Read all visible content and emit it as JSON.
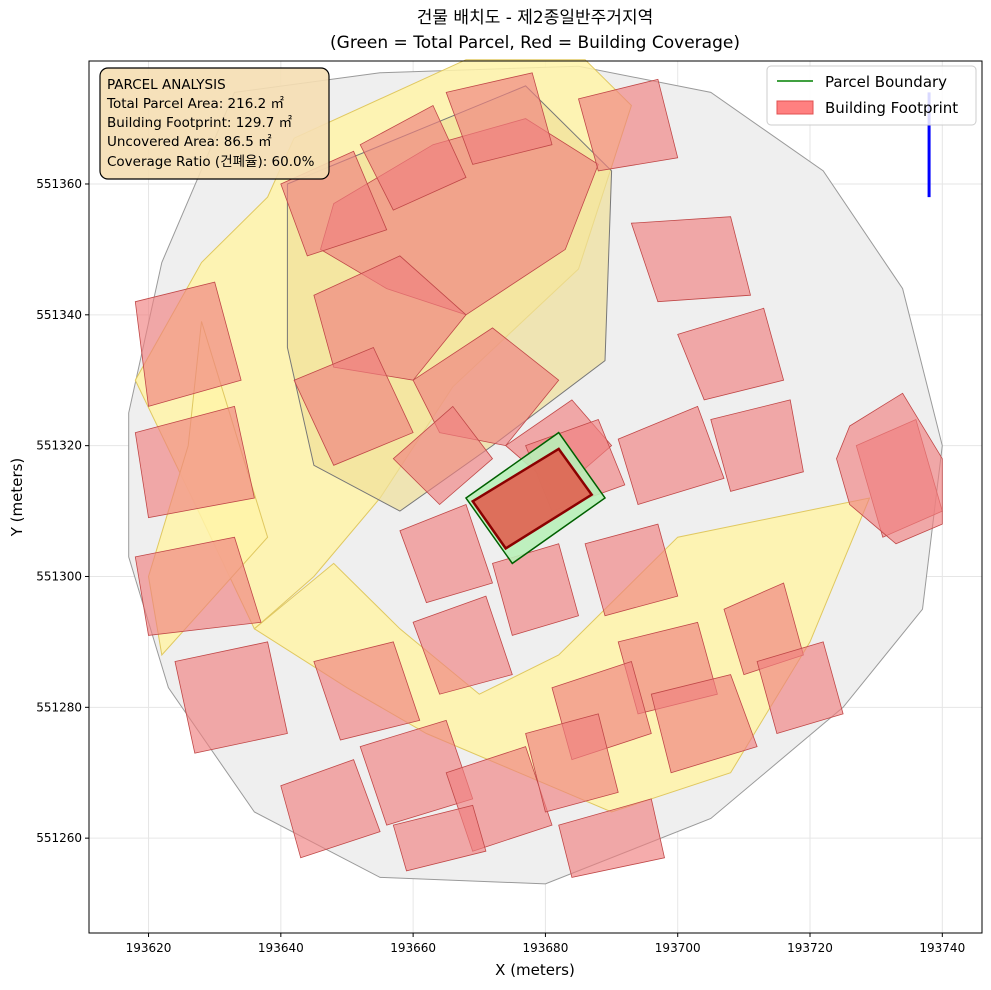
{
  "chart_data": {
    "type": "map",
    "title": "건물 배치도 - 제2종일반주거지역",
    "subtitle": "(Green = Total Parcel, Red = Building Coverage)",
    "xlabel": "X (meters)",
    "ylabel": "Y (meters)",
    "xlim": [
      193611,
      193746
    ],
    "ylim": [
      551245.5,
      551378.8
    ],
    "grid": true,
    "xticks": [
      193620,
      193640,
      193660,
      193680,
      193700,
      193720,
      193740
    ],
    "yticks": [
      551260,
      551280,
      551300,
      551320,
      551340,
      551360
    ],
    "legend": {
      "placement": "top-right",
      "entries": [
        {
          "label": "Parcel Boundary",
          "color": "#008000",
          "kind": "line"
        },
        {
          "label": "Building Footprint",
          "color": "#ff8080",
          "kind": "patch"
        }
      ]
    },
    "info_box": {
      "lines": [
        "PARCEL ANALYSIS",
        "Total Parcel Area: 216.2 ㎡",
        "Building Footprint: 129.7 ㎡",
        "Uncovered Area: 86.5 ㎡",
        "Coverage Ratio (건폐율): 60.0%"
      ]
    },
    "analysis": {
      "total_parcel_area_m2": 216.2,
      "building_footprint_m2": 129.7,
      "uncovered_area_m2": 86.5,
      "coverage_ratio_pct": 60.0
    },
    "target_parcel": [
      [
        193668,
        551312
      ],
      [
        193682,
        551322
      ],
      [
        193689,
        551312
      ],
      [
        193675,
        551302
      ]
    ],
    "target_building": [
      [
        193669,
        551311.5
      ],
      [
        193682,
        551319.5
      ],
      [
        193687,
        551312.5
      ],
      [
        193674,
        551304.3
      ]
    ],
    "context_boundary": [
      [
        193633,
        551374
      ],
      [
        193655,
        551377
      ],
      [
        193685,
        551378
      ],
      [
        193705,
        551374
      ],
      [
        193722,
        551362
      ],
      [
        193734,
        551344
      ],
      [
        193740,
        551320
      ],
      [
        193737,
        551295
      ],
      [
        193725,
        551280
      ],
      [
        193705,
        551263
      ],
      [
        193680,
        551253
      ],
      [
        193655,
        551254
      ],
      [
        193636,
        551264
      ],
      [
        193623,
        551283
      ],
      [
        193617,
        551303
      ],
      [
        193617,
        551325
      ],
      [
        193622,
        551348
      ]
    ],
    "roads": [
      [
        [
          193642,
          551367
        ],
        [
          193668,
          551379
        ],
        [
          193686,
          551379
        ],
        [
          193693,
          551372
        ],
        [
          193685,
          551347
        ],
        [
          193666,
          551329
        ],
        [
          193655,
          551312
        ],
        [
          193645,
          551300
        ],
        [
          193636,
          551292
        ],
        [
          193628,
          551309
        ],
        [
          193618,
          551330
        ],
        [
          193628,
          551348
        ],
        [
          193638,
          551358
        ]
      ],
      [
        [
          193636,
          551292
        ],
        [
          193650,
          551283
        ],
        [
          193662,
          551276
        ],
        [
          193676,
          551270
        ],
        [
          193690,
          551264
        ],
        [
          193708,
          551270
        ],
        [
          193720,
          551290
        ],
        [
          193729,
          551312
        ],
        [
          193700,
          551306
        ],
        [
          193690,
          551296
        ],
        [
          193682,
          551288
        ],
        [
          193670,
          551282
        ],
        [
          193658,
          551292
        ],
        [
          193648,
          551302
        ]
      ],
      [
        [
          193628,
          551339
        ],
        [
          193638,
          551306
        ],
        [
          193622,
          551288
        ],
        [
          193620,
          551300
        ],
        [
          193626,
          551320
        ]
      ]
    ],
    "highlight_block": [
      [
        193641,
        551360
      ],
      [
        193677,
        551375
      ],
      [
        193690,
        551362
      ],
      [
        193689,
        551333
      ],
      [
        193672,
        551320
      ],
      [
        193658,
        551310
      ],
      [
        193645,
        551317
      ],
      [
        193641,
        551335
      ]
    ],
    "blocks": [
      [
        [
          193648,
          551357
        ],
        [
          193663,
          551366
        ],
        [
          193677,
          551370
        ],
        [
          193688,
          551363
        ],
        [
          193683,
          551350
        ],
        [
          193668,
          551340
        ],
        [
          193656,
          551344
        ],
        [
          193646,
          551350
        ]
      ],
      [
        [
          193645,
          551343
        ],
        [
          193658,
          551349
        ],
        [
          193668,
          551340
        ],
        [
          193660,
          551330
        ],
        [
          193648,
          551332
        ]
      ],
      [
        [
          193660,
          551330
        ],
        [
          193672,
          551338
        ],
        [
          193682,
          551330
        ],
        [
          193674,
          551320
        ],
        [
          193664,
          551322
        ]
      ],
      [
        [
          193642,
          551330
        ],
        [
          193654,
          551335
        ],
        [
          193660,
          551322
        ],
        [
          193648,
          551317
        ]
      ],
      [
        [
          193657,
          551318
        ],
        [
          193666,
          551326
        ],
        [
          193672,
          551318
        ],
        [
          193664,
          551311
        ]
      ],
      [
        [
          193674,
          551320
        ],
        [
          193684,
          551327
        ],
        [
          193690,
          551320
        ],
        [
          193682,
          551313
        ]
      ],
      [
        [
          193618,
          551342
        ],
        [
          193630,
          551345
        ],
        [
          193634,
          551330
        ],
        [
          193620,
          551326
        ]
      ],
      [
        [
          193618,
          551322
        ],
        [
          193633,
          551326
        ],
        [
          193636,
          551312
        ],
        [
          193620,
          551309
        ]
      ],
      [
        [
          193618,
          551303
        ],
        [
          193633,
          551306
        ],
        [
          193637,
          551293
        ],
        [
          193620,
          551291
        ]
      ],
      [
        [
          193624,
          551287
        ],
        [
          193638,
          551290
        ],
        [
          193641,
          551276
        ],
        [
          193627,
          551273
        ]
      ],
      [
        [
          193640,
          551360
        ],
        [
          193651,
          551365
        ],
        [
          193656,
          551353
        ],
        [
          193644,
          551349
        ]
      ],
      [
        [
          193652,
          551366
        ],
        [
          193663,
          551372
        ],
        [
          193668,
          551361
        ],
        [
          193657,
          551356
        ]
      ],
      [
        [
          193665,
          551374
        ],
        [
          193678,
          551377
        ],
        [
          193681,
          551366
        ],
        [
          193669,
          551363
        ]
      ],
      [
        [
          193685,
          551373
        ],
        [
          193697,
          551376
        ],
        [
          193700,
          551364
        ],
        [
          193688,
          551362
        ]
      ],
      [
        [
          193693,
          551354
        ],
        [
          193708,
          551355
        ],
        [
          193711,
          551343
        ],
        [
          193697,
          551342
        ]
      ],
      [
        [
          193700,
          551337
        ],
        [
          193713,
          551341
        ],
        [
          193716,
          551330
        ],
        [
          193704,
          551327
        ]
      ],
      [
        [
          193705,
          551324
        ],
        [
          193717,
          551327
        ],
        [
          193719,
          551316
        ],
        [
          193708,
          551313
        ]
      ],
      [
        [
          193691,
          551321
        ],
        [
          193703,
          551326
        ],
        [
          193707,
          551315
        ],
        [
          193694,
          551311
        ]
      ],
      [
        [
          193677,
          551320
        ],
        [
          193688,
          551324
        ],
        [
          193692,
          551314
        ],
        [
          193681,
          551310
        ]
      ],
      [
        [
          193658,
          551307
        ],
        [
          193668,
          551311
        ],
        [
          193672,
          551299
        ],
        [
          193662,
          551296
        ]
      ],
      [
        [
          193672,
          551302
        ],
        [
          193682,
          551305
        ],
        [
          193685,
          551294
        ],
        [
          193675,
          551291
        ]
      ],
      [
        [
          193686,
          551305
        ],
        [
          193697,
          551308
        ],
        [
          193700,
          551297
        ],
        [
          193689,
          551294
        ]
      ],
      [
        [
          193691,
          551290
        ],
        [
          193703,
          551293
        ],
        [
          193706,
          551282
        ],
        [
          193694,
          551279
        ]
      ],
      [
        [
          193660,
          551293
        ],
        [
          193671,
          551297
        ],
        [
          193675,
          551285
        ],
        [
          193664,
          551282
        ]
      ],
      [
        [
          193645,
          551287
        ],
        [
          193657,
          551290
        ],
        [
          193661,
          551278
        ],
        [
          193649,
          551275
        ]
      ],
      [
        [
          193652,
          551274
        ],
        [
          193665,
          551278
        ],
        [
          193669,
          551266
        ],
        [
          193656,
          551262
        ]
      ],
      [
        [
          193665,
          551270
        ],
        [
          193677,
          551274
        ],
        [
          193681,
          551262
        ],
        [
          193669,
          551258
        ]
      ],
      [
        [
          193640,
          551268
        ],
        [
          193651,
          551272
        ],
        [
          193655,
          551261
        ],
        [
          193643,
          551257
        ]
      ],
      [
        [
          193681,
          551283
        ],
        [
          193693,
          551287
        ],
        [
          193696,
          551276
        ],
        [
          193684,
          551272
        ]
      ],
      [
        [
          193696,
          551282
        ],
        [
          193708,
          551285
        ],
        [
          193712,
          551274
        ],
        [
          193699,
          551270
        ]
      ],
      [
        [
          193677,
          551276
        ],
        [
          193688,
          551279
        ],
        [
          193691,
          551267
        ],
        [
          193680,
          551264
        ]
      ],
      [
        [
          193707,
          551295
        ],
        [
          193716,
          551299
        ],
        [
          193719,
          551288
        ],
        [
          193710,
          551285
        ]
      ],
      [
        [
          193712,
          551287
        ],
        [
          193722,
          551290
        ],
        [
          193725,
          551279
        ],
        [
          193715,
          551276
        ]
      ],
      [
        [
          193727,
          551320
        ],
        [
          193736,
          551324
        ],
        [
          193740,
          551310
        ],
        [
          193731,
          551306
        ]
      ],
      [
        [
          193657,
          551262
        ],
        [
          193669,
          551265
        ],
        [
          193671,
          551258
        ],
        [
          193659,
          551255
        ]
      ],
      [
        [
          193682,
          551262
        ],
        [
          193696,
          551266
        ],
        [
          193698,
          551257
        ],
        [
          193684,
          551254
        ]
      ]
    ],
    "rounded_building": [
      [
        193726,
        551323
      ],
      [
        193734,
        551328
      ],
      [
        193740,
        551318
      ],
      [
        193740,
        551308
      ],
      [
        193733,
        551305
      ],
      [
        193726,
        551311
      ],
      [
        193724,
        551318
      ]
    ],
    "blue_marker": [
      [
        193738,
        551374
      ],
      [
        193738,
        551358
      ]
    ]
  }
}
